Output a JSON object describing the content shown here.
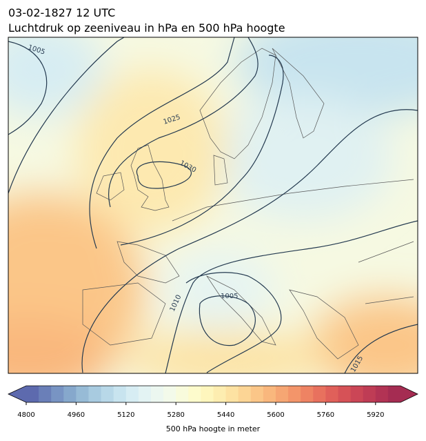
{
  "header": {
    "title": "03-02-1827 12 UTC",
    "subtitle": "Luchtdruk op zeeniveau in hPa en 500 hPa hoogte"
  },
  "map": {
    "contour_labels": [
      "1005",
      "1025",
      "1030",
      "1010",
      "1005",
      "1015"
    ]
  },
  "colorbar": {
    "label": "500 hPa hoogte in meter",
    "range": [
      4800,
      6000
    ],
    "ticks": [
      4800,
      4960,
      5120,
      5280,
      5440,
      5600,
      5760,
      5920
    ],
    "colors": [
      "#5d6aae",
      "#6a7fb8",
      "#7894c3",
      "#86a8cc",
      "#97bbd6",
      "#a8cbe0",
      "#b8d8e8",
      "#c8e4ef",
      "#d7edf3",
      "#e3f3f3",
      "#ecf7f0",
      "#f3faea",
      "#f8fbdc",
      "#fdfbcc",
      "#fef6bd",
      "#fdedb0",
      "#fde2a2",
      "#fcd595",
      "#fbc688",
      "#f9b77d",
      "#f6a673",
      "#f3956a",
      "#ee8363",
      "#e8715e",
      "#e0605a",
      "#d65257",
      "#cb4656",
      "#bf3c55",
      "#b23354",
      "#a52c52"
    ]
  }
}
